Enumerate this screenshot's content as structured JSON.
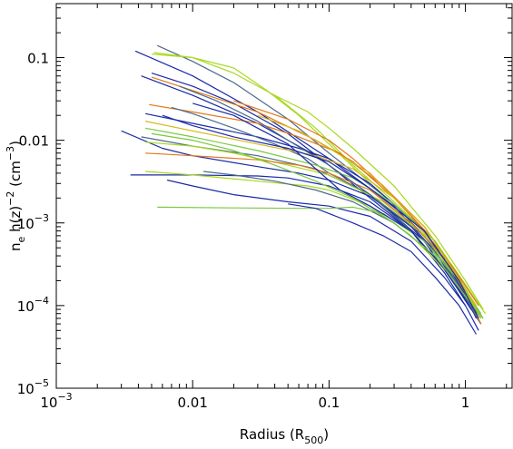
{
  "chart_data": {
    "type": "line",
    "x_scale": "log",
    "y_scale": "log",
    "xlim": [
      0.001,
      2.2
    ],
    "ylim": [
      1e-05,
      0.45
    ],
    "grid": false,
    "legend": "none",
    "x_ticks": [
      {
        "value": 0.001,
        "base": "10",
        "exp": "−3"
      },
      {
        "value": 0.01,
        "label": "0.01"
      },
      {
        "value": 0.1,
        "label": "0.1"
      },
      {
        "value": 1,
        "label": "1"
      }
    ],
    "y_ticks": [
      {
        "value": 1e-05,
        "base": "10",
        "exp": "−5"
      },
      {
        "value": 0.0001,
        "base": "10",
        "exp": "−4"
      },
      {
        "value": 0.001,
        "base": "10",
        "exp": "−3"
      },
      {
        "value": 0.01,
        "label": "0.01"
      },
      {
        "value": 0.1,
        "label": "0.1"
      }
    ],
    "xlabel": {
      "main": "Radius (R",
      "sub": "500",
      "tail": ")"
    },
    "ylabel": {
      "n": "n",
      "n_sub": "e",
      "mid": " h(z)",
      "mid_sup": "−2",
      "paren": " (cm",
      "paren_sup": "−3",
      "end": ")"
    },
    "colors": {
      "navy": "#1a2aa8",
      "slate": "#4a6a8a",
      "lime": "#a8d820",
      "green": "#7ac840",
      "orange": "#e07818",
      "gold": "#d8b818"
    },
    "series": [
      {
        "color": "#1a2aa8",
        "x": [
          0.0038,
          0.01,
          0.03,
          0.1,
          0.3,
          0.6,
          1.0,
          1.3
        ],
        "y": [
          0.12,
          0.06,
          0.022,
          0.006,
          0.0016,
          0.00045,
          0.00012,
          6e-05
        ]
      },
      {
        "color": "#4a6a8a",
        "x": [
          0.0055,
          0.01,
          0.02,
          0.05,
          0.1,
          0.3,
          0.6,
          1.0,
          1.3
        ],
        "y": [
          0.14,
          0.09,
          0.05,
          0.018,
          0.007,
          0.0017,
          0.0005,
          0.00013,
          7e-05
        ]
      },
      {
        "color": "#a8d820",
        "x": [
          0.005,
          0.01,
          0.02,
          0.04,
          0.08,
          0.15,
          0.3,
          0.6,
          1.0,
          1.4
        ],
        "y": [
          0.11,
          0.1,
          0.065,
          0.035,
          0.014,
          0.005,
          0.0018,
          0.0006,
          0.00018,
          8e-05
        ]
      },
      {
        "color": "#a8d820",
        "x": [
          0.0052,
          0.01,
          0.02,
          0.035,
          0.06,
          0.1,
          0.2,
          0.4,
          0.7,
          1.0,
          1.35
        ],
        "y": [
          0.115,
          0.1,
          0.075,
          0.04,
          0.02,
          0.009,
          0.003,
          0.0011,
          0.0004,
          0.00014,
          7e-05
        ]
      },
      {
        "color": "#1a2aa8",
        "x": [
          0.005,
          0.01,
          0.02,
          0.05,
          0.1,
          0.2,
          0.4,
          0.8,
          1.2
        ],
        "y": [
          0.065,
          0.045,
          0.028,
          0.012,
          0.005,
          0.002,
          0.0008,
          0.00022,
          8e-05
        ]
      },
      {
        "color": "#e07818",
        "x": [
          0.005,
          0.01,
          0.03,
          0.08,
          0.15,
          0.3,
          0.6,
          1.0,
          1.3
        ],
        "y": [
          0.058,
          0.04,
          0.022,
          0.01,
          0.0055,
          0.002,
          0.0006,
          0.00016,
          7e-05
        ]
      },
      {
        "color": "#1a2aa8",
        "x": [
          0.0042,
          0.01,
          0.03,
          0.08,
          0.2,
          0.5,
          0.9,
          1.3
        ],
        "y": [
          0.06,
          0.035,
          0.016,
          0.0065,
          0.0022,
          0.0006,
          0.00015,
          6e-05
        ]
      },
      {
        "color": "#e07818",
        "x": [
          0.0048,
          0.01,
          0.03,
          0.06,
          0.12,
          0.25,
          0.5,
          0.9,
          1.3
        ],
        "y": [
          0.027,
          0.022,
          0.016,
          0.011,
          0.007,
          0.0028,
          0.0009,
          0.00022,
          6e-05
        ]
      },
      {
        "color": "#1a2aa8",
        "x": [
          0.0045,
          0.01,
          0.03,
          0.06,
          0.1,
          0.2,
          0.5,
          0.9,
          1.2
        ],
        "y": [
          0.021,
          0.016,
          0.011,
          0.008,
          0.006,
          0.003,
          0.0008,
          0.0002,
          7e-05
        ]
      },
      {
        "color": "#4a6a8a",
        "x": [
          0.007,
          0.01,
          0.02,
          0.04,
          0.07,
          0.1,
          0.2,
          0.5,
          0.9,
          1.3
        ],
        "y": [
          0.025,
          0.021,
          0.014,
          0.009,
          0.006,
          0.004,
          0.0022,
          0.0007,
          0.00017,
          6e-05
        ]
      },
      {
        "color": "#d8b818",
        "x": [
          0.0045,
          0.01,
          0.03,
          0.08,
          0.15,
          0.3,
          0.5,
          0.8,
          1.2
        ],
        "y": [
          0.017,
          0.013,
          0.009,
          0.0065,
          0.0045,
          0.002,
          0.0009,
          0.0003,
          9e-05
        ]
      },
      {
        "color": "#7ac840",
        "x": [
          0.0045,
          0.01,
          0.03,
          0.08,
          0.15,
          0.3,
          0.6,
          1.0,
          1.35
        ],
        "y": [
          0.014,
          0.011,
          0.0075,
          0.005,
          0.0035,
          0.0017,
          0.0006,
          0.00016,
          7e-05
        ]
      },
      {
        "color": "#1a2aa8",
        "x": [
          0.003,
          0.006,
          0.01,
          0.03,
          0.06,
          0.1,
          0.2,
          0.4,
          0.8,
          1.2
        ],
        "y": [
          0.013,
          0.008,
          0.0065,
          0.0048,
          0.004,
          0.0033,
          0.0021,
          0.0009,
          0.00025,
          8e-05
        ]
      },
      {
        "color": "#4a6a8a",
        "x": [
          0.0042,
          0.01,
          0.03,
          0.08,
          0.2,
          0.5,
          0.9,
          1.3
        ],
        "y": [
          0.011,
          0.0085,
          0.0065,
          0.0045,
          0.0022,
          0.0007,
          0.00017,
          6e-05
        ]
      },
      {
        "color": "#a8d820",
        "x": [
          0.0045,
          0.01,
          0.02,
          0.05,
          0.1,
          0.25,
          0.5,
          0.9,
          1.3
        ],
        "y": [
          0.0095,
          0.0085,
          0.007,
          0.005,
          0.0038,
          0.0018,
          0.0007,
          0.0002,
          7e-05
        ]
      },
      {
        "color": "#e07818",
        "x": [
          0.0045,
          0.01,
          0.03,
          0.06,
          0.1,
          0.2,
          0.4,
          0.8,
          1.25
        ],
        "y": [
          0.007,
          0.0065,
          0.0058,
          0.005,
          0.004,
          0.0025,
          0.001,
          0.0003,
          0.0001
        ]
      },
      {
        "color": "#1a2aa8",
        "x": [
          0.0035,
          0.01,
          0.03,
          0.05,
          0.1,
          0.2,
          0.4,
          0.7,
          1.0
        ],
        "y": [
          0.0038,
          0.0038,
          0.0037,
          0.0035,
          0.0028,
          0.0018,
          0.0008,
          0.00025,
          0.0001
        ]
      },
      {
        "color": "#a8d820",
        "x": [
          0.0045,
          0.01,
          0.03,
          0.07,
          0.1,
          0.2,
          0.4,
          0.8,
          1.2
        ],
        "y": [
          0.0042,
          0.0038,
          0.0032,
          0.0028,
          0.0025,
          0.0016,
          0.0007,
          0.00022,
          8e-05
        ]
      },
      {
        "color": "#4a6a8a",
        "x": [
          0.012,
          0.02,
          0.04,
          0.08,
          0.15,
          0.3,
          0.6,
          1.0,
          1.3
        ],
        "y": [
          0.0042,
          0.0038,
          0.0032,
          0.0025,
          0.0018,
          0.001,
          0.0004,
          0.00013,
          6e-05
        ]
      },
      {
        "color": "#1a2aa8",
        "x": [
          0.0065,
          0.01,
          0.02,
          0.05,
          0.1,
          0.2,
          0.4,
          0.7,
          1.0,
          1.25
        ],
        "y": [
          0.0033,
          0.0028,
          0.0022,
          0.0018,
          0.0016,
          0.0012,
          0.0006,
          0.00022,
          0.0001,
          5e-05
        ]
      },
      {
        "color": "#7ac840",
        "x": [
          0.0055,
          0.02,
          0.06,
          0.1,
          0.15,
          0.25,
          0.5,
          0.9,
          1.3
        ],
        "y": [
          0.00155,
          0.00152,
          0.0015,
          0.0015,
          0.00155,
          0.0013,
          0.0006,
          0.0002,
          8e-05
        ]
      },
      {
        "color": "#1a2aa8",
        "x": [
          0.05,
          0.08,
          0.1,
          0.15,
          0.25,
          0.4,
          0.6,
          0.9,
          1.2
        ],
        "y": [
          0.0017,
          0.0015,
          0.0013,
          0.001,
          0.0007,
          0.00045,
          0.00022,
          0.0001,
          4.5e-05
        ]
      },
      {
        "color": "#e07818",
        "x": [
          0.02,
          0.05,
          0.1,
          0.15,
          0.25,
          0.4,
          0.7,
          1.0,
          1.3
        ],
        "y": [
          0.03,
          0.018,
          0.01,
          0.006,
          0.0028,
          0.0012,
          0.0004,
          0.00014,
          6e-05
        ]
      },
      {
        "color": "#d8b818",
        "x": [
          0.03,
          0.06,
          0.1,
          0.2,
          0.3,
          0.5,
          0.8,
          1.2
        ],
        "y": [
          0.02,
          0.013,
          0.008,
          0.004,
          0.002,
          0.0009,
          0.00028,
          0.0001
        ]
      },
      {
        "color": "#4a6a8a",
        "x": [
          0.008,
          0.015,
          0.03,
          0.05,
          0.1,
          0.2,
          0.4,
          0.8,
          1.2
        ],
        "y": [
          0.045,
          0.03,
          0.017,
          0.01,
          0.005,
          0.0022,
          0.0008,
          0.00022,
          8e-05
        ]
      },
      {
        "color": "#1a2aa8",
        "x": [
          0.01,
          0.02,
          0.03,
          0.05,
          0.08,
          0.12,
          0.2,
          0.4,
          0.7,
          1.1
        ],
        "y": [
          0.028,
          0.02,
          0.014,
          0.009,
          0.0045,
          0.0025,
          0.0016,
          0.0008,
          0.00028,
          9e-05
        ]
      },
      {
        "color": "#7ac840",
        "x": [
          0.005,
          0.01,
          0.02,
          0.04,
          0.08,
          0.15,
          0.3,
          0.6,
          1.0,
          1.35
        ],
        "y": [
          0.012,
          0.01,
          0.0075,
          0.005,
          0.0032,
          0.002,
          0.001,
          0.0004,
          0.00013,
          7e-05
        ]
      },
      {
        "color": "#a8d820",
        "x": [
          0.04,
          0.07,
          0.1,
          0.15,
          0.3,
          0.6,
          1.0,
          1.35
        ],
        "y": [
          0.035,
          0.022,
          0.014,
          0.008,
          0.0028,
          0.0007,
          0.0002,
          9e-05
        ]
      },
      {
        "color": "#1a2aa8",
        "x": [
          0.006,
          0.01,
          0.02,
          0.05,
          0.1,
          0.2,
          0.5,
          0.9,
          1.25
        ],
        "y": [
          0.02,
          0.015,
          0.011,
          0.008,
          0.0055,
          0.0026,
          0.0008,
          0.0002,
          7e-05
        ]
      }
    ]
  }
}
